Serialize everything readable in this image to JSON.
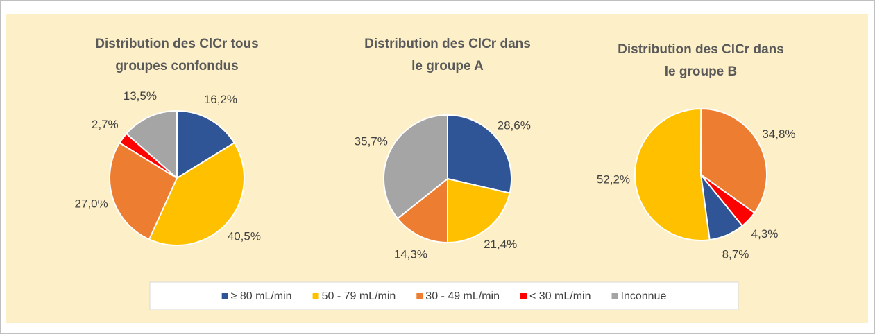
{
  "legend": {
    "labels": [
      "≥ 80 mL/min",
      "50 - 79 mL/min",
      "30 - 49 mL/min",
      "< 30 mL/min",
      "Inconnue"
    ],
    "colors": [
      "#2f5597",
      "#ffc000",
      "#ed7d31",
      "#ff0000",
      "#a5a5a5"
    ]
  },
  "chart_data": [
    {
      "type": "pie",
      "title": [
        "Distribution des ClCr tous",
        "groupes confondus"
      ],
      "values": [
        16.2,
        40.5,
        27.0,
        2.7,
        13.5
      ],
      "value_labels": [
        "16,2%",
        "40,5%",
        "27,0%",
        "2,7%",
        "13,5%"
      ],
      "start_angle": 0
    },
    {
      "type": "pie",
      "title": [
        "Distribution des ClCr dans",
        "le groupe A"
      ],
      "values": [
        28.6,
        21.4,
        14.3,
        null,
        35.7
      ],
      "value_labels": [
        "28,6%",
        "21,4%",
        "14,3%",
        null,
        "35,7%"
      ],
      "start_angle": 0
    },
    {
      "type": "pie",
      "title": [
        "Distribution des ClCr dans",
        "le groupe B"
      ],
      "values": [
        8.7,
        52.2,
        34.8,
        4.3,
        null
      ],
      "value_labels": [
        "8,7%",
        "52,2%",
        "34,8%",
        "4,3%",
        null
      ],
      "start_angle": 141
    }
  ]
}
